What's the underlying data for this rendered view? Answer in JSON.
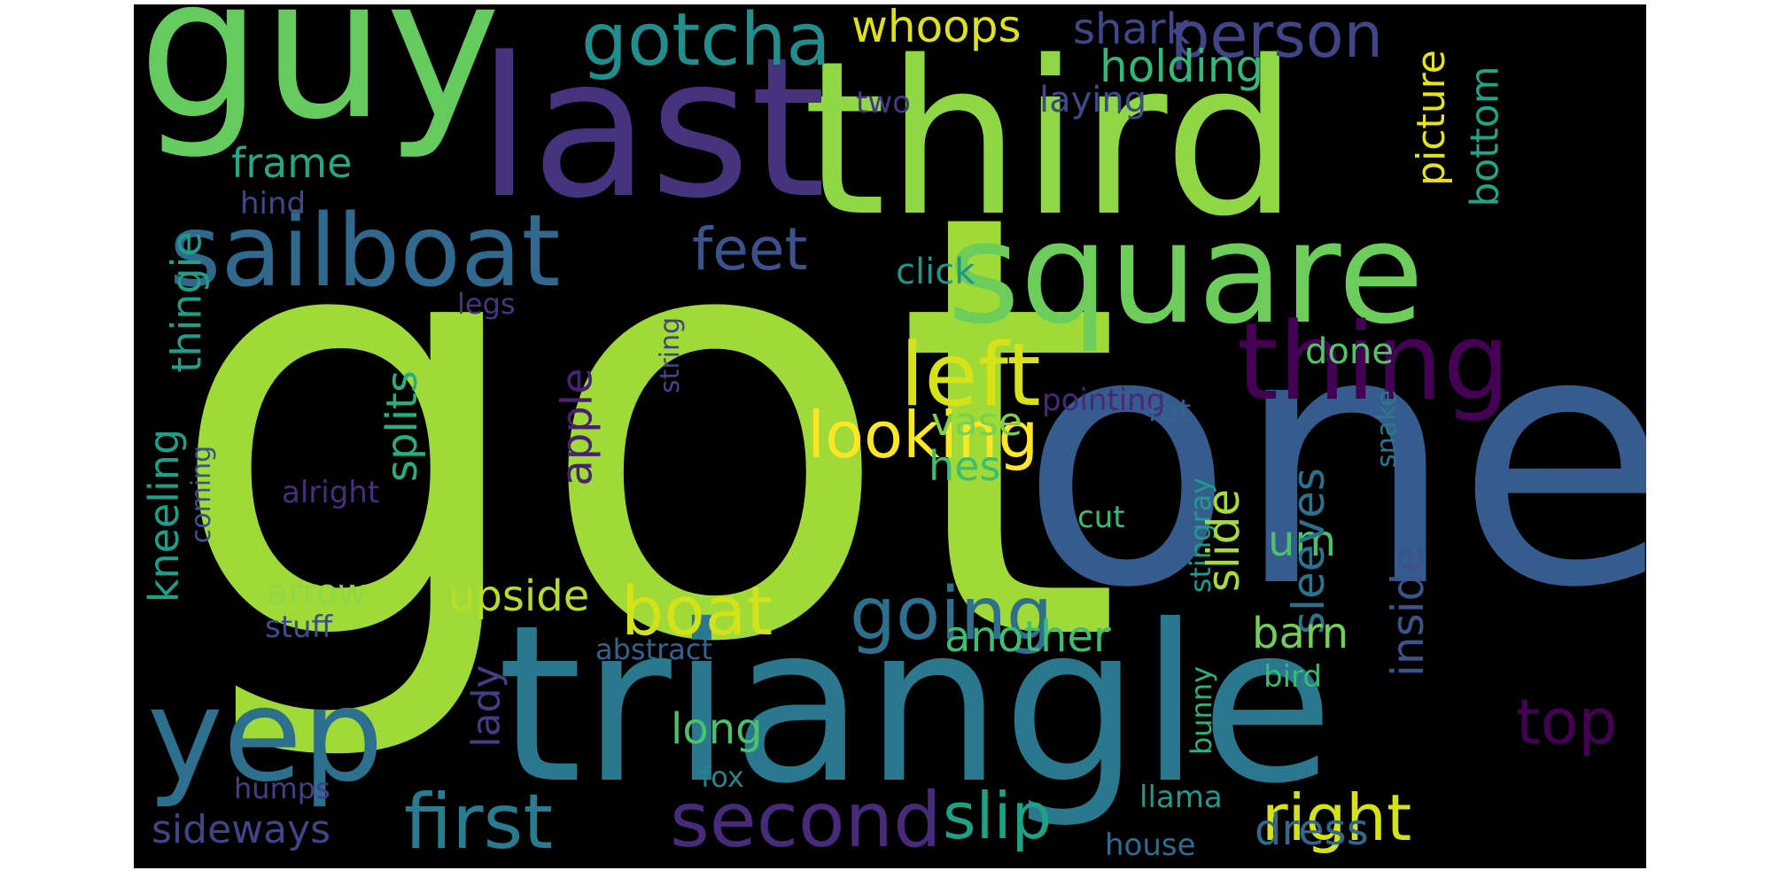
{
  "words": [
    {
      "text": "got",
      "color": "#a0da39"
    },
    {
      "text": "one",
      "color": "#365c8d"
    },
    {
      "text": "triangle",
      "color": "#2a788e"
    },
    {
      "text": "third",
      "color": "#8fd744"
    },
    {
      "text": "last",
      "color": "#46337e"
    },
    {
      "text": "guy",
      "color": "#65cb5e"
    },
    {
      "text": "square",
      "color": "#6ccd5a"
    },
    {
      "text": "sailboat",
      "color": "#31688e"
    },
    {
      "text": "thing",
      "color": "#440154"
    },
    {
      "text": "yep",
      "color": "#2d708e"
    },
    {
      "text": "first",
      "color": "#297b8e"
    },
    {
      "text": "second",
      "color": "#472a7a"
    },
    {
      "text": "left",
      "color": "#d8e219"
    },
    {
      "text": "gotcha",
      "color": "#228d8d"
    },
    {
      "text": "person",
      "color": "#414487"
    },
    {
      "text": "looking",
      "color": "#fde725"
    },
    {
      "text": "going",
      "color": "#2e6f8e"
    },
    {
      "text": "boat",
      "color": "#d2e21b"
    },
    {
      "text": "right",
      "color": "#d5e21a"
    },
    {
      "text": "slip",
      "color": "#1fa187"
    },
    {
      "text": "top",
      "color": "#440154"
    },
    {
      "text": "feet",
      "color": "#3b528b"
    },
    {
      "text": "whoops",
      "color": "#dde318"
    },
    {
      "text": "shark",
      "color": "#3f4788"
    },
    {
      "text": "holding",
      "color": "#35b779"
    },
    {
      "text": "frame",
      "color": "#22a884"
    },
    {
      "text": "laying",
      "color": "#3e4a89"
    },
    {
      "text": "two",
      "color": "#443983"
    },
    {
      "text": "hind",
      "color": "#3f4889"
    },
    {
      "text": "click",
      "color": "#1f968b"
    },
    {
      "text": "legs",
      "color": "#463480"
    },
    {
      "text": "picture",
      "color": "#e5e419"
    },
    {
      "text": "bottom",
      "color": "#20a386"
    },
    {
      "text": "thingie",
      "color": "#1f9e89"
    },
    {
      "text": "kneeling",
      "color": "#1f9e89"
    },
    {
      "text": "splits",
      "color": "#29af7f"
    },
    {
      "text": "apple",
      "color": "#482173"
    },
    {
      "text": "string",
      "color": "#414487"
    },
    {
      "text": "done",
      "color": "#52c569"
    },
    {
      "text": "pointing",
      "color": "#482878"
    },
    {
      "text": "rat",
      "color": "#33638d"
    },
    {
      "text": "snake",
      "color": "#2a788e"
    },
    {
      "text": "vase",
      "color": "#7ad151"
    },
    {
      "text": "hes",
      "color": "#3dbc74"
    },
    {
      "text": "alright",
      "color": "#472d7b"
    },
    {
      "text": "coming",
      "color": "#3b528b"
    },
    {
      "text": "cut",
      "color": "#3bbb75"
    },
    {
      "text": "stingray",
      "color": "#1e9b8a"
    },
    {
      "text": "um",
      "color": "#4ac16d"
    },
    {
      "text": "slide",
      "color": "#a8db34"
    },
    {
      "text": "sleeves",
      "color": "#2c728e"
    },
    {
      "text": "inside",
      "color": "#3b528b"
    },
    {
      "text": "arrow",
      "color": "#8fd744"
    },
    {
      "text": "stuff",
      "color": "#3e4c8a"
    },
    {
      "text": "upside",
      "color": "#b5de2b"
    },
    {
      "text": "another",
      "color": "#40bd72"
    },
    {
      "text": "barn",
      "color": "#73d056"
    },
    {
      "text": "abstract",
      "color": "#33638d"
    },
    {
      "text": "bunny",
      "color": "#2db27d"
    },
    {
      "text": "bird",
      "color": "#3aba76"
    },
    {
      "text": "lady",
      "color": "#433e85"
    },
    {
      "text": "long",
      "color": "#4ac16d"
    },
    {
      "text": "fox",
      "color": "#25838e"
    },
    {
      "text": "humps",
      "color": "#433e85"
    },
    {
      "text": "llama",
      "color": "#1f9a8a"
    },
    {
      "text": "sideways",
      "color": "#414487"
    },
    {
      "text": "dress",
      "color": "#31688e"
    },
    {
      "text": "house",
      "color": "#2f6c8e"
    }
  ]
}
